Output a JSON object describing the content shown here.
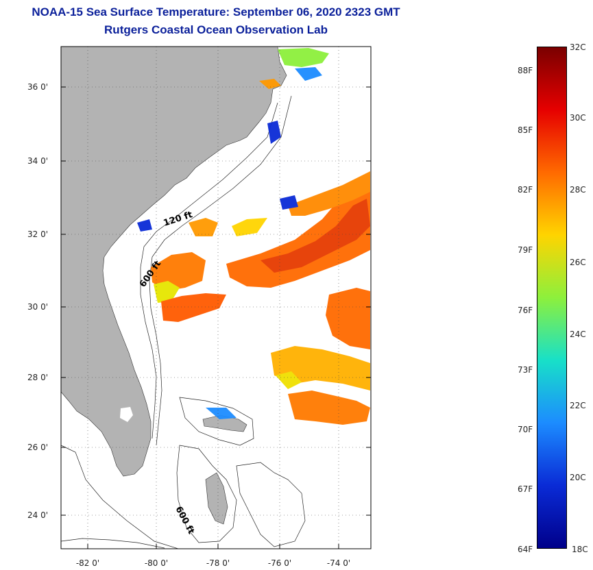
{
  "header": {
    "title": "NOAA-15 Sea Surface Temperature:  September 06, 2020 2323 GMT",
    "subtitle": "Rutgers Coastal Ocean Observation Lab"
  },
  "map": {
    "lat_ticks": [
      "36 0'",
      "34 0'",
      "32 0'",
      "30 0'",
      "28 0'",
      "26 0'",
      "24 0'"
    ],
    "lon_ticks": [
      "-82 0'",
      "-80 0'",
      "-78 0'",
      "-76 0'",
      "-74 0'"
    ],
    "isobath_labels": [
      "120 ft",
      "600 ft",
      "600 ft"
    ],
    "land_color": "#b3b3b3",
    "ocean_color": "#ffffff"
  },
  "colorbar": {
    "celsius": [
      "32C",
      "30C",
      "28C",
      "26C",
      "24C",
      "22C",
      "20C",
      "18C"
    ],
    "fahrenheit": [
      "88F",
      "85F",
      "82F",
      "79F",
      "76F",
      "73F",
      "70F",
      "67F",
      "64F"
    ],
    "colors": [
      "#7a0000",
      "#e60000",
      "#ff6a00",
      "#ffd400",
      "#8df03c",
      "#18e0c8",
      "#1c8cff",
      "#0a2bd6",
      "#00008a"
    ]
  }
}
